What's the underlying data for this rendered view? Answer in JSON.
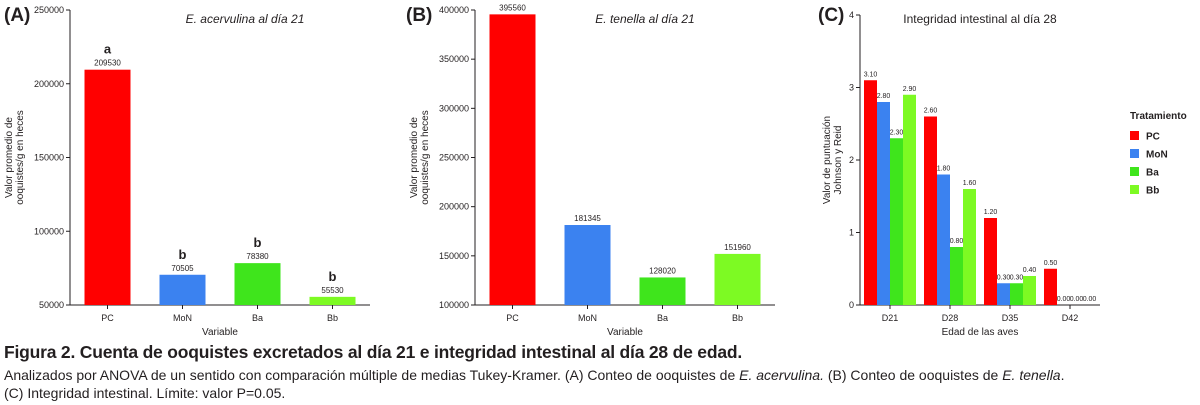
{
  "chart_data": [
    {
      "type": "bar",
      "panel_letter": "(A)",
      "title": "E. acervulina al día 21",
      "xlabel": "Variable",
      "ylabel": [
        "Valor promedio de",
        "ooquistes/g en heces"
      ],
      "ylim": [
        50000,
        250000
      ],
      "yticks": [
        "50000",
        "100000",
        "150000",
        "200000",
        "250000"
      ],
      "categories": [
        "PC",
        "MoN",
        "Ba",
        "Bb"
      ],
      "values": [
        209530,
        70505,
        78380,
        55530
      ],
      "value_labels": [
        "209530",
        "70505",
        "78380",
        "55530"
      ],
      "letters": [
        "a",
        "b",
        "b",
        "b"
      ],
      "colors": [
        "#ff0000",
        "#3b82f0",
        "#3fe51c",
        "#7dfa23"
      ],
      "grid": false,
      "legend": "none"
    },
    {
      "type": "bar",
      "panel_letter": "(B)",
      "title": "E. tenella al día 21",
      "xlabel": "Variable",
      "ylabel": [
        "Valor promedio de",
        "ooquistes/g en heces"
      ],
      "ylim": [
        100000,
        400000
      ],
      "yticks": [
        "100000",
        "150000",
        "200000",
        "250000",
        "300000",
        "350000",
        "400000"
      ],
      "categories": [
        "PC",
        "MoN",
        "Ba",
        "Bb"
      ],
      "values": [
        395560,
        181345,
        128020,
        151960
      ],
      "value_labels": [
        "395560",
        "181345",
        "128020",
        "151960"
      ],
      "colors": [
        "#ff0000",
        "#3b82f0",
        "#3fe51c",
        "#7dfa23"
      ],
      "grid": false,
      "legend": "none"
    },
    {
      "type": "bar",
      "panel_letter": "(C)",
      "title": "Integridad intestinal al día 28",
      "xlabel": "Edad de las aves",
      "ylabel": [
        "Valor de puntuación",
        "Johnson y Reid"
      ],
      "ylim": [
        0,
        4
      ],
      "yticks": [
        "0",
        "1",
        "2",
        "3",
        "4"
      ],
      "categories": [
        "D21",
        "D28",
        "D35",
        "D42"
      ],
      "legend_title": "Tratamiento",
      "legend": "right",
      "grid": false,
      "series": [
        {
          "name": "PC",
          "color": "#ff0000",
          "values": [
            3.1,
            2.6,
            1.2,
            0.5
          ],
          "value_labels": [
            "3.10",
            "2.60",
            "1.20",
            "0.50"
          ]
        },
        {
          "name": "MoN",
          "color": "#3b82f0",
          "values": [
            2.8,
            1.8,
            0.3,
            0.0
          ],
          "value_labels": [
            "2.80",
            "1.80",
            "0.30",
            "0.00"
          ]
        },
        {
          "name": "Ba",
          "color": "#3fe51c",
          "values": [
            2.3,
            0.8,
            0.3,
            0.0
          ],
          "value_labels": [
            "2.30",
            "0.80",
            "0.30",
            "0.00"
          ]
        },
        {
          "name": "Bb",
          "color": "#7dfa23",
          "values": [
            2.9,
            1.6,
            0.4,
            0.0
          ],
          "value_labels": [
            "2.90",
            "1.60",
            "0.40",
            "0.00"
          ]
        }
      ]
    }
  ],
  "caption": {
    "title": "Figura 2. Cuenta de ooquistes excretados al día 21 e integridad intestinal al día 28 de edad.",
    "line1_prefix": "Analizados por ANOVA de un sentido con comparación múltiple de medias Tukey-Kramer.  (A) Conteo de ooquistes de ",
    "line1_italic_a": "E. acervulina.",
    "line1_middle": "  (B) Conteo de ooquistes de ",
    "line1_italic_b": "E. tenella",
    "line1_suffix": ".",
    "line2": "(C) Integridad intestinal. Límite: valor P=0.05."
  }
}
